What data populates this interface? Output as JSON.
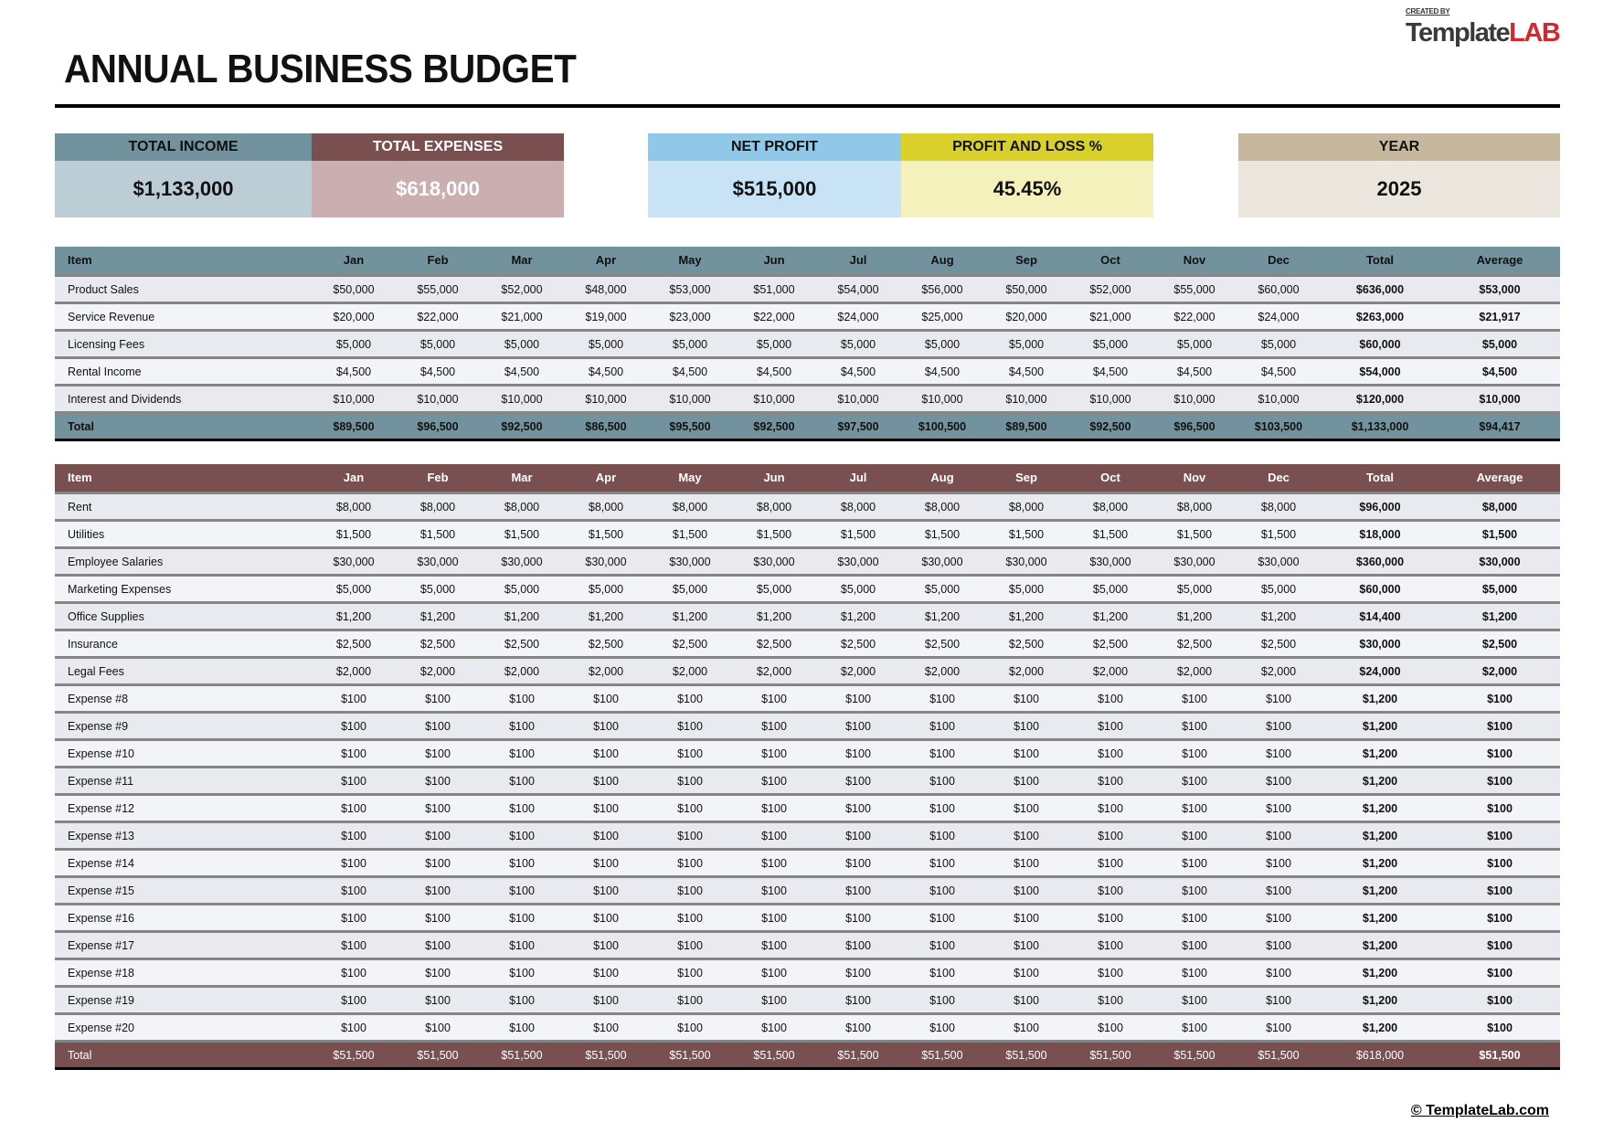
{
  "title": "ANNUAL BUSINESS BUDGET",
  "logo": {
    "created_by": "CREATED BY",
    "brand_a": "Template",
    "brand_b": "LAB"
  },
  "summary": [
    {
      "label": "TOTAL INCOME",
      "value": "$1,133,000",
      "header_color": "#72939e",
      "body_color": "#bccdd5",
      "text_color": "#111"
    },
    {
      "label": "TOTAL EXPENSES",
      "value": "$618,000",
      "header_color": "#7a4f4f",
      "body_color": "#cbaeb0",
      "text_color": "#fff"
    },
    {
      "label": "NET PROFIT",
      "value": "$515,000",
      "header_color": "#90c8ea",
      "body_color": "#c7e3f5",
      "text_color": "#111"
    },
    {
      "label": "PROFIT AND LOSS %",
      "value": "45.45%",
      "header_color": "#d9d02b",
      "body_color": "#f5f1bc",
      "text_color": "#111"
    },
    {
      "label": "YEAR",
      "value": "2025",
      "header_color": "#c5b89c",
      "body_color": "#ebe7de",
      "text_color": "#111"
    }
  ],
  "columns": [
    "Item",
    "Jan",
    "Feb",
    "Mar",
    "Apr",
    "May",
    "Jun",
    "Jul",
    "Aug",
    "Sep",
    "Oct",
    "Nov",
    "Dec",
    "Total",
    "Average"
  ],
  "income": {
    "rows": [
      [
        "Product Sales",
        "$50,000",
        "$55,000",
        "$52,000",
        "$48,000",
        "$53,000",
        "$51,000",
        "$54,000",
        "$56,000",
        "$50,000",
        "$52,000",
        "$55,000",
        "$60,000",
        "$636,000",
        "$53,000"
      ],
      [
        "Service Revenue",
        "$20,000",
        "$22,000",
        "$21,000",
        "$19,000",
        "$23,000",
        "$22,000",
        "$24,000",
        "$25,000",
        "$20,000",
        "$21,000",
        "$22,000",
        "$24,000",
        "$263,000",
        "$21,917"
      ],
      [
        "Licensing Fees",
        "$5,000",
        "$5,000",
        "$5,000",
        "$5,000",
        "$5,000",
        "$5,000",
        "$5,000",
        "$5,000",
        "$5,000",
        "$5,000",
        "$5,000",
        "$5,000",
        "$60,000",
        "$5,000"
      ],
      [
        "Rental Income",
        "$4,500",
        "$4,500",
        "$4,500",
        "$4,500",
        "$4,500",
        "$4,500",
        "$4,500",
        "$4,500",
        "$4,500",
        "$4,500",
        "$4,500",
        "$4,500",
        "$54,000",
        "$4,500"
      ],
      [
        "Interest and Dividends",
        "$10,000",
        "$10,000",
        "$10,000",
        "$10,000",
        "$10,000",
        "$10,000",
        "$10,000",
        "$10,000",
        "$10,000",
        "$10,000",
        "$10,000",
        "$10,000",
        "$120,000",
        "$10,000"
      ]
    ],
    "total": [
      "Total",
      "$89,500",
      "$96,500",
      "$92,500",
      "$86,500",
      "$95,500",
      "$92,500",
      "$97,500",
      "$100,500",
      "$89,500",
      "$92,500",
      "$96,500",
      "$103,500",
      "$1,133,000",
      "$94,417"
    ]
  },
  "expenses": {
    "rows": [
      [
        "Rent",
        "$8,000",
        "$8,000",
        "$8,000",
        "$8,000",
        "$8,000",
        "$8,000",
        "$8,000",
        "$8,000",
        "$8,000",
        "$8,000",
        "$8,000",
        "$8,000",
        "$96,000",
        "$8,000"
      ],
      [
        "Utilities",
        "$1,500",
        "$1,500",
        "$1,500",
        "$1,500",
        "$1,500",
        "$1,500",
        "$1,500",
        "$1,500",
        "$1,500",
        "$1,500",
        "$1,500",
        "$1,500",
        "$18,000",
        "$1,500"
      ],
      [
        "Employee Salaries",
        "$30,000",
        "$30,000",
        "$30,000",
        "$30,000",
        "$30,000",
        "$30,000",
        "$30,000",
        "$30,000",
        "$30,000",
        "$30,000",
        "$30,000",
        "$30,000",
        "$360,000",
        "$30,000"
      ],
      [
        "Marketing Expenses",
        "$5,000",
        "$5,000",
        "$5,000",
        "$5,000",
        "$5,000",
        "$5,000",
        "$5,000",
        "$5,000",
        "$5,000",
        "$5,000",
        "$5,000",
        "$5,000",
        "$60,000",
        "$5,000"
      ],
      [
        "Office Supplies",
        "$1,200",
        "$1,200",
        "$1,200",
        "$1,200",
        "$1,200",
        "$1,200",
        "$1,200",
        "$1,200",
        "$1,200",
        "$1,200",
        "$1,200",
        "$1,200",
        "$14,400",
        "$1,200"
      ],
      [
        "Insurance",
        "$2,500",
        "$2,500",
        "$2,500",
        "$2,500",
        "$2,500",
        "$2,500",
        "$2,500",
        "$2,500",
        "$2,500",
        "$2,500",
        "$2,500",
        "$2,500",
        "$30,000",
        "$2,500"
      ],
      [
        "Legal Fees",
        "$2,000",
        "$2,000",
        "$2,000",
        "$2,000",
        "$2,000",
        "$2,000",
        "$2,000",
        "$2,000",
        "$2,000",
        "$2,000",
        "$2,000",
        "$2,000",
        "$24,000",
        "$2,000"
      ],
      [
        "Expense #8",
        "$100",
        "$100",
        "$100",
        "$100",
        "$100",
        "$100",
        "$100",
        "$100",
        "$100",
        "$100",
        "$100",
        "$100",
        "$1,200",
        "$100"
      ],
      [
        "Expense #9",
        "$100",
        "$100",
        "$100",
        "$100",
        "$100",
        "$100",
        "$100",
        "$100",
        "$100",
        "$100",
        "$100",
        "$100",
        "$1,200",
        "$100"
      ],
      [
        "Expense #10",
        "$100",
        "$100",
        "$100",
        "$100",
        "$100",
        "$100",
        "$100",
        "$100",
        "$100",
        "$100",
        "$100",
        "$100",
        "$1,200",
        "$100"
      ],
      [
        "Expense #11",
        "$100",
        "$100",
        "$100",
        "$100",
        "$100",
        "$100",
        "$100",
        "$100",
        "$100",
        "$100",
        "$100",
        "$100",
        "$1,200",
        "$100"
      ],
      [
        "Expense #12",
        "$100",
        "$100",
        "$100",
        "$100",
        "$100",
        "$100",
        "$100",
        "$100",
        "$100",
        "$100",
        "$100",
        "$100",
        "$1,200",
        "$100"
      ],
      [
        "Expense #13",
        "$100",
        "$100",
        "$100",
        "$100",
        "$100",
        "$100",
        "$100",
        "$100",
        "$100",
        "$100",
        "$100",
        "$100",
        "$1,200",
        "$100"
      ],
      [
        "Expense #14",
        "$100",
        "$100",
        "$100",
        "$100",
        "$100",
        "$100",
        "$100",
        "$100",
        "$100",
        "$100",
        "$100",
        "$100",
        "$1,200",
        "$100"
      ],
      [
        "Expense #15",
        "$100",
        "$100",
        "$100",
        "$100",
        "$100",
        "$100",
        "$100",
        "$100",
        "$100",
        "$100",
        "$100",
        "$100",
        "$1,200",
        "$100"
      ],
      [
        "Expense #16",
        "$100",
        "$100",
        "$100",
        "$100",
        "$100",
        "$100",
        "$100",
        "$100",
        "$100",
        "$100",
        "$100",
        "$100",
        "$1,200",
        "$100"
      ],
      [
        "Expense #17",
        "$100",
        "$100",
        "$100",
        "$100",
        "$100",
        "$100",
        "$100",
        "$100",
        "$100",
        "$100",
        "$100",
        "$100",
        "$1,200",
        "$100"
      ],
      [
        "Expense #18",
        "$100",
        "$100",
        "$100",
        "$100",
        "$100",
        "$100",
        "$100",
        "$100",
        "$100",
        "$100",
        "$100",
        "$100",
        "$1,200",
        "$100"
      ],
      [
        "Expense #19",
        "$100",
        "$100",
        "$100",
        "$100",
        "$100",
        "$100",
        "$100",
        "$100",
        "$100",
        "$100",
        "$100",
        "$100",
        "$1,200",
        "$100"
      ],
      [
        "Expense #20",
        "$100",
        "$100",
        "$100",
        "$100",
        "$100",
        "$100",
        "$100",
        "$100",
        "$100",
        "$100",
        "$100",
        "$100",
        "$1,200",
        "$100"
      ]
    ],
    "total": [
      "Total",
      "$51,500",
      "$51,500",
      "$51,500",
      "$51,500",
      "$51,500",
      "$51,500",
      "$51,500",
      "$51,500",
      "$51,500",
      "$51,500",
      "$51,500",
      "$51,500",
      "$618,000",
      "$51,500"
    ]
  },
  "footer": "© TemplateLab.com"
}
